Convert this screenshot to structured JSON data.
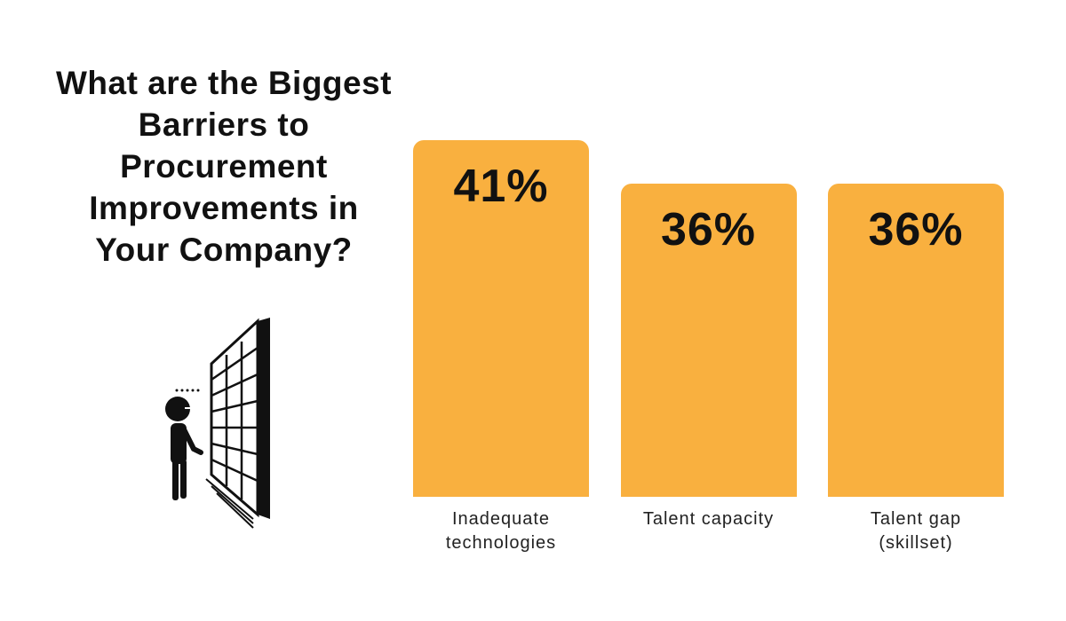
{
  "chart_data": {
    "type": "bar",
    "title": "What are the Biggest Barriers to Procurement Improvements in Your Company?",
    "categories": [
      "Inadequate technologies",
      "Talent capacity",
      "Talent gap (skillset)"
    ],
    "values": [
      41,
      36,
      36
    ],
    "value_labels": [
      "41%",
      "36%",
      "36%"
    ],
    "color": "#f9b03f"
  }
}
